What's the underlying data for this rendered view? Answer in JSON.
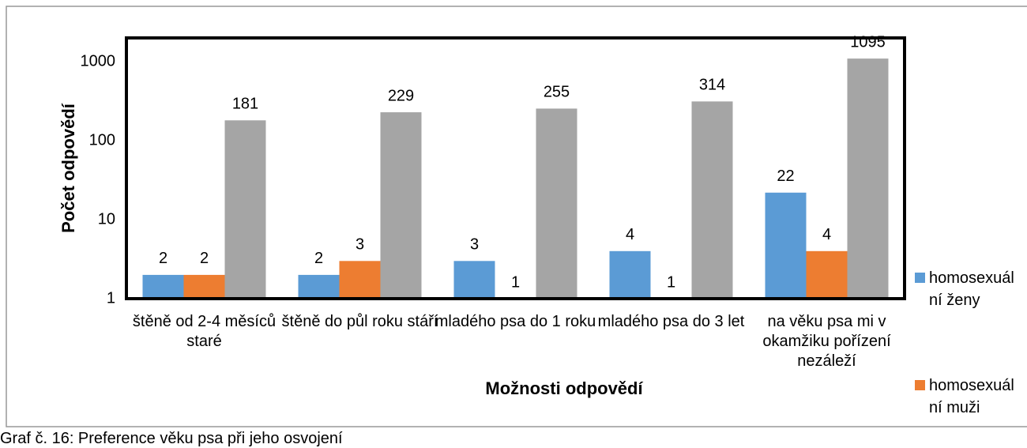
{
  "chart_data": {
    "type": "bar",
    "y_label": "Počet odpovědí",
    "x_label": "Možnosti odpovědí",
    "categories": [
      "štěně od 2-4 měsíců staré",
      "štěně do půl roku stáří",
      "mladého psa do 1 roku",
      "mladého psa do 3 let",
      "na věku psa mi v okamžiku pořízení nezáleží"
    ],
    "series": [
      {
        "name": "homosexuální ženy",
        "color": "#5b9bd5",
        "values": [
          2,
          2,
          3,
          4,
          22
        ]
      },
      {
        "name": "homosexuální muži",
        "color": "#ed7d31",
        "values": [
          2,
          3,
          1,
          1,
          4
        ]
      },
      {
        "color": "#a5a5a5",
        "values": [
          181,
          229,
          255,
          314,
          1095
        ]
      }
    ],
    "ylim": [
      1,
      2000
    ],
    "yticks": [
      1,
      10,
      100,
      1000
    ],
    "log_scale": true,
    "grid": false,
    "legend": "right"
  },
  "caption": "Graf č. 16: Preference věku psa při jeho osvojení"
}
